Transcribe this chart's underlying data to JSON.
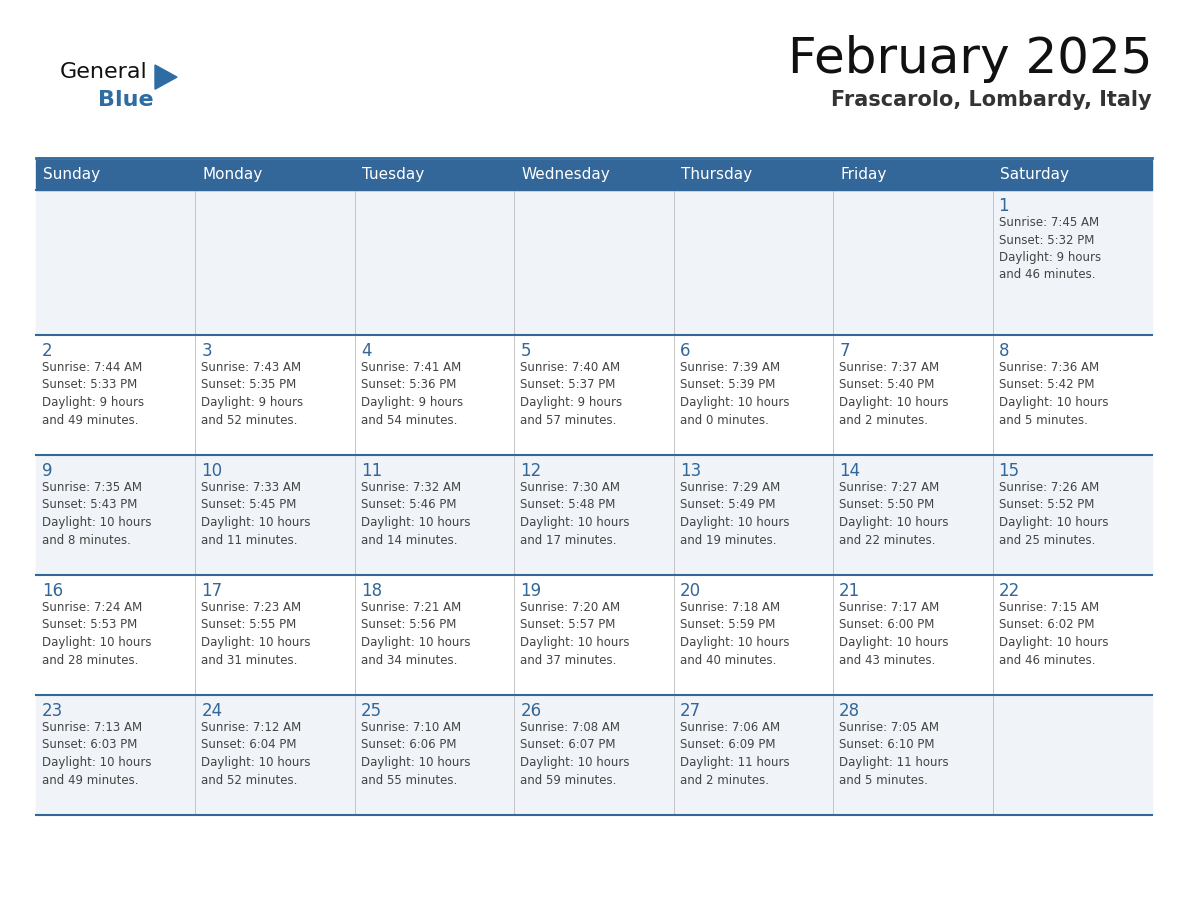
{
  "title": "February 2025",
  "subtitle": "Frascarolo, Lombardy, Italy",
  "header_bg": "#336699",
  "header_text_color": "#FFFFFF",
  "row_bg_light": "#F0F4F8",
  "row_bg_white": "#FFFFFF",
  "text_color": "#444444",
  "day_number_color": "#336699",
  "border_color": "#336699",
  "days_of_week": [
    "Sunday",
    "Monday",
    "Tuesday",
    "Wednesday",
    "Thursday",
    "Friday",
    "Saturday"
  ],
  "logo_general_color": "#111111",
  "logo_blue_color": "#2E6DA4",
  "title_color": "#111111",
  "subtitle_color": "#333333",
  "calendar_data": [
    [
      null,
      null,
      null,
      null,
      null,
      null,
      {
        "day": "1",
        "sunrise": "7:45 AM",
        "sunset": "5:32 PM",
        "daylight": "9 hours\nand 46 minutes."
      }
    ],
    [
      {
        "day": "2",
        "sunrise": "7:44 AM",
        "sunset": "5:33 PM",
        "daylight": "9 hours\nand 49 minutes."
      },
      {
        "day": "3",
        "sunrise": "7:43 AM",
        "sunset": "5:35 PM",
        "daylight": "9 hours\nand 52 minutes."
      },
      {
        "day": "4",
        "sunrise": "7:41 AM",
        "sunset": "5:36 PM",
        "daylight": "9 hours\nand 54 minutes."
      },
      {
        "day": "5",
        "sunrise": "7:40 AM",
        "sunset": "5:37 PM",
        "daylight": "9 hours\nand 57 minutes."
      },
      {
        "day": "6",
        "sunrise": "7:39 AM",
        "sunset": "5:39 PM",
        "daylight": "10 hours\nand 0 minutes."
      },
      {
        "day": "7",
        "sunrise": "7:37 AM",
        "sunset": "5:40 PM",
        "daylight": "10 hours\nand 2 minutes."
      },
      {
        "day": "8",
        "sunrise": "7:36 AM",
        "sunset": "5:42 PM",
        "daylight": "10 hours\nand 5 minutes."
      }
    ],
    [
      {
        "day": "9",
        "sunrise": "7:35 AM",
        "sunset": "5:43 PM",
        "daylight": "10 hours\nand 8 minutes."
      },
      {
        "day": "10",
        "sunrise": "7:33 AM",
        "sunset": "5:45 PM",
        "daylight": "10 hours\nand 11 minutes."
      },
      {
        "day": "11",
        "sunrise": "7:32 AM",
        "sunset": "5:46 PM",
        "daylight": "10 hours\nand 14 minutes."
      },
      {
        "day": "12",
        "sunrise": "7:30 AM",
        "sunset": "5:48 PM",
        "daylight": "10 hours\nand 17 minutes."
      },
      {
        "day": "13",
        "sunrise": "7:29 AM",
        "sunset": "5:49 PM",
        "daylight": "10 hours\nand 19 minutes."
      },
      {
        "day": "14",
        "sunrise": "7:27 AM",
        "sunset": "5:50 PM",
        "daylight": "10 hours\nand 22 minutes."
      },
      {
        "day": "15",
        "sunrise": "7:26 AM",
        "sunset": "5:52 PM",
        "daylight": "10 hours\nand 25 minutes."
      }
    ],
    [
      {
        "day": "16",
        "sunrise": "7:24 AM",
        "sunset": "5:53 PM",
        "daylight": "10 hours\nand 28 minutes."
      },
      {
        "day": "17",
        "sunrise": "7:23 AM",
        "sunset": "5:55 PM",
        "daylight": "10 hours\nand 31 minutes."
      },
      {
        "day": "18",
        "sunrise": "7:21 AM",
        "sunset": "5:56 PM",
        "daylight": "10 hours\nand 34 minutes."
      },
      {
        "day": "19",
        "sunrise": "7:20 AM",
        "sunset": "5:57 PM",
        "daylight": "10 hours\nand 37 minutes."
      },
      {
        "day": "20",
        "sunrise": "7:18 AM",
        "sunset": "5:59 PM",
        "daylight": "10 hours\nand 40 minutes."
      },
      {
        "day": "21",
        "sunrise": "7:17 AM",
        "sunset": "6:00 PM",
        "daylight": "10 hours\nand 43 minutes."
      },
      {
        "day": "22",
        "sunrise": "7:15 AM",
        "sunset": "6:02 PM",
        "daylight": "10 hours\nand 46 minutes."
      }
    ],
    [
      {
        "day": "23",
        "sunrise": "7:13 AM",
        "sunset": "6:03 PM",
        "daylight": "10 hours\nand 49 minutes."
      },
      {
        "day": "24",
        "sunrise": "7:12 AM",
        "sunset": "6:04 PM",
        "daylight": "10 hours\nand 52 minutes."
      },
      {
        "day": "25",
        "sunrise": "7:10 AM",
        "sunset": "6:06 PM",
        "daylight": "10 hours\nand 55 minutes."
      },
      {
        "day": "26",
        "sunrise": "7:08 AM",
        "sunset": "6:07 PM",
        "daylight": "10 hours\nand 59 minutes."
      },
      {
        "day": "27",
        "sunrise": "7:06 AM",
        "sunset": "6:09 PM",
        "daylight": "11 hours\nand 2 minutes."
      },
      {
        "day": "28",
        "sunrise": "7:05 AM",
        "sunset": "6:10 PM",
        "daylight": "11 hours\nand 5 minutes."
      },
      null
    ]
  ]
}
